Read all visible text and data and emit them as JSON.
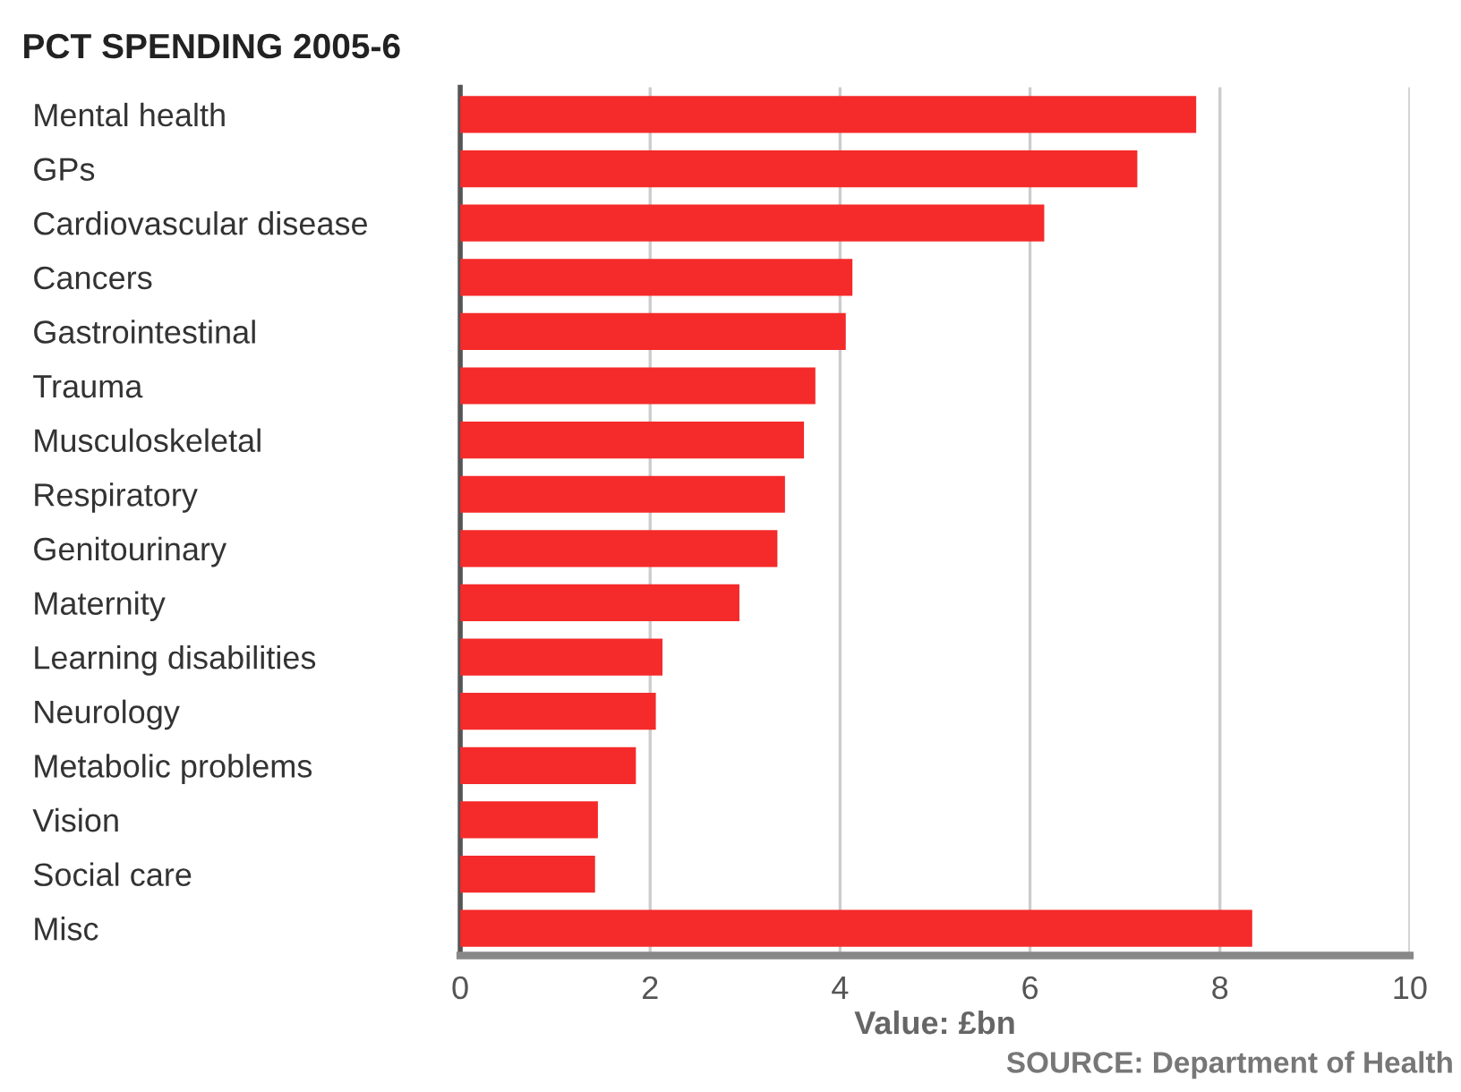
{
  "chart_data": {
    "type": "bar",
    "orientation": "horizontal",
    "title": "PCT SPENDING 2005-6",
    "xlabel": "Value: £bn",
    "annotations": [
      "SOURCE: Department of Health"
    ],
    "categories": [
      "Mental health",
      "GPs",
      "Cardiovascular disease",
      "Cancers",
      "Gastrointestinal",
      "Trauma",
      "Musculoskeletal",
      "Respiratory",
      "Genitourinary",
      "Maternity",
      "Learning disabilities",
      "Neurology",
      "Metabolic problems",
      "Vision",
      "Social care",
      "Misc"
    ],
    "values": [
      7.75,
      7.13,
      6.15,
      4.13,
      4.06,
      3.74,
      3.62,
      3.42,
      3.34,
      2.94,
      2.13,
      2.06,
      1.85,
      1.45,
      1.42,
      8.34
    ],
    "color": "#f52a2a",
    "xlim": [
      0,
      10
    ],
    "xticks": [
      0,
      2,
      4,
      6,
      8,
      10
    ],
    "grid": "x",
    "legend": false
  }
}
